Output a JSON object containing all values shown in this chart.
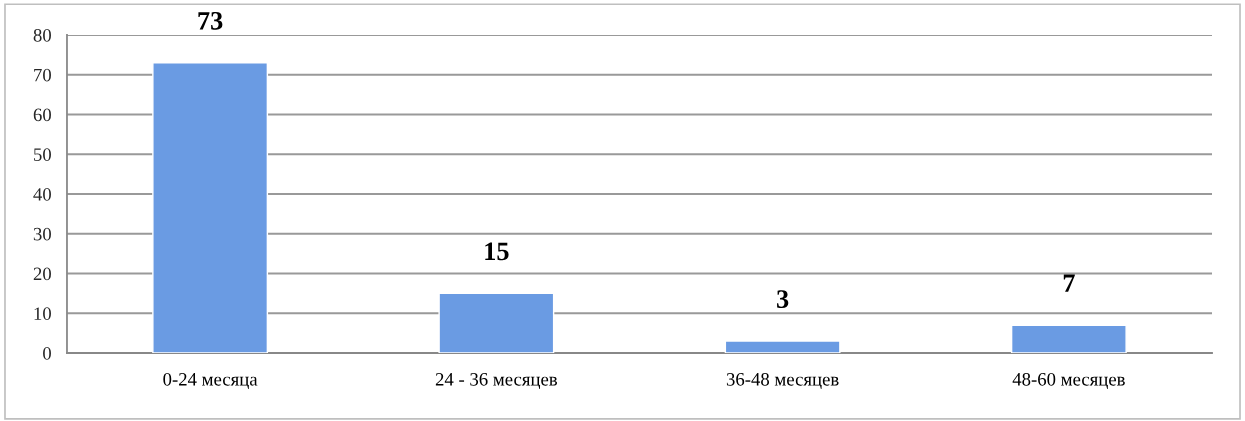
{
  "chart_data": {
    "type": "bar",
    "categories": [
      "0-24 месяца",
      "24 - 36 месяцев",
      "36-48 месяцев",
      "48-60 месяцев"
    ],
    "values": [
      73,
      15,
      3,
      7
    ],
    "color": "#6a9be3",
    "ylim": [
      0,
      80
    ],
    "yticks": [
      0,
      10,
      20,
      30,
      40,
      50,
      60,
      70,
      80
    ],
    "grid": "y",
    "data_labels": true
  }
}
